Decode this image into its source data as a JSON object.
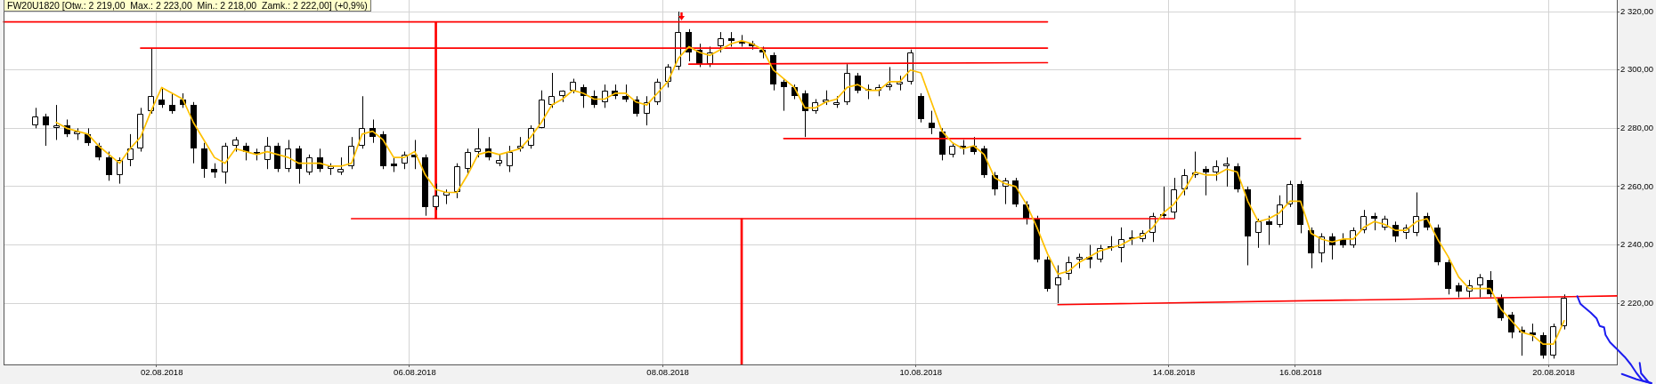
{
  "chart_data": {
    "type": "candlestick",
    "title": "FW20U1820 [Otw.: 2 219,00  Max.: 2 223,00  Min.: 2 218,00  Zamk.: 2 222,00] (+0,9%)",
    "categories": [
      null,
      null,
      null,
      null,
      null,
      null,
      null,
      null,
      null,
      null,
      null,
      null,
      null,
      null,
      null,
      "02.08.2018",
      null,
      null,
      null,
      null,
      null,
      null,
      null,
      null,
      null,
      null,
      null,
      null,
      null,
      null,
      null,
      null,
      null,
      null,
      null,
      null,
      null,
      null,
      null,
      "06.08.2018",
      null,
      null,
      null,
      null,
      null,
      null,
      null,
      null,
      null,
      null,
      null,
      null,
      null,
      null,
      null,
      null,
      null,
      null,
      null,
      null,
      null,
      null,
      null,
      "08.08.2018",
      null,
      null,
      null,
      null,
      null,
      null,
      null,
      null,
      null,
      null,
      null,
      null,
      null,
      null,
      null,
      null,
      null,
      null,
      null,
      null,
      null,
      null,
      null,
      "10.08.2018",
      null,
      null,
      null,
      null,
      null,
      null,
      null,
      null,
      null,
      null,
      null,
      null,
      null,
      null,
      null,
      null,
      null,
      null,
      null,
      null,
      null,
      null,
      null,
      "14.08.2018",
      null,
      null,
      null,
      null,
      null,
      null,
      null,
      null,
      null,
      null,
      null,
      "16.08.2018",
      null,
      null,
      null,
      null,
      null,
      null,
      null,
      null,
      null,
      null,
      null,
      null,
      null,
      null,
      null,
      null,
      null,
      null,
      null,
      null,
      null,
      null,
      null,
      "20.08.2018",
      null,
      null,
      null,
      null,
      null,
      null
    ],
    "ohlc": [
      null,
      null,
      null,
      [
        2281,
        2287,
        2280,
        2284
      ],
      [
        2284,
        2285,
        2274,
        2281
      ],
      [
        2280,
        2288,
        2276,
        2281
      ],
      [
        2281,
        2283,
        2277,
        2278
      ],
      [
        2278,
        2280,
        2276,
        2279
      ],
      [
        2278,
        2280,
        2274,
        2275
      ],
      [
        2274,
        2275,
        2269,
        2270
      ],
      [
        2270,
        2272,
        2262,
        2264
      ],
      [
        2264,
        2270,
        2261,
        2269
      ],
      [
        2269,
        2278,
        2267,
        2273
      ],
      [
        2273,
        2287,
        2272,
        2285
      ],
      [
        2286,
        2307.5,
        2285,
        2291
      ],
      [
        2290,
        2294,
        2287,
        2288
      ],
      [
        2288,
        2292,
        2285,
        2286
      ],
      [
        2290,
        2292,
        2287,
        2288
      ],
      [
        2288,
        2289,
        2268,
        2273
      ],
      [
        2273,
        2275,
        2263,
        2266
      ],
      [
        2266,
        2268,
        2263,
        2265
      ],
      [
        2265,
        2275,
        2261,
        2274
      ],
      [
        2274,
        2277,
        2272,
        2276
      ],
      [
        2274,
        2275,
        2269,
        2272
      ],
      [
        2272,
        2273,
        2269,
        2271
      ],
      [
        2269,
        2277,
        2266,
        2274
      ],
      [
        2274,
        2275,
        2265,
        2266
      ],
      [
        2266,
        2276,
        2265,
        2273
      ],
      [
        2273,
        2274,
        2261,
        2266
      ],
      [
        2265,
        2271,
        2264,
        2270
      ],
      [
        2270,
        2273,
        2265,
        2266
      ],
      [
        2266,
        2268,
        2264,
        2267
      ],
      [
        2265,
        2270,
        2264,
        2266
      ],
      [
        2267,
        2277,
        2266,
        2274
      ],
      [
        2274,
        2291,
        2273,
        2280
      ],
      [
        2280,
        2283,
        2275,
        2277
      ],
      [
        2278,
        2279,
        2266,
        2267
      ],
      [
        2268,
        2270,
        2265,
        2267
      ],
      [
        2268,
        2272,
        2266,
        2271
      ],
      [
        2271,
        2276,
        2266,
        2270
      ],
      [
        2270,
        2271,
        2250,
        2253
      ],
      [
        2253,
        2261,
        2252,
        2257
      ],
      [
        2257,
        2259,
        2254,
        2258
      ],
      [
        2258,
        2268,
        2256,
        2267
      ],
      [
        2266,
        2273,
        2264,
        2272
      ],
      [
        2272,
        2280,
        2270,
        2273
      ],
      [
        2273,
        2277,
        2269,
        2270
      ],
      [
        2268,
        2271,
        2267,
        2269
      ],
      [
        2267,
        2274,
        2265,
        2272
      ],
      [
        2273,
        2277,
        2272,
        2274
      ],
      [
        2274,
        2281,
        2273,
        2280
      ],
      [
        2280,
        2293,
        2280,
        2290
      ],
      [
        2288,
        2299,
        2287,
        2291
      ],
      [
        2291,
        2293,
        2289,
        2293
      ],
      [
        2293,
        2297,
        2292,
        2296
      ],
      [
        2294,
        2295,
        2287,
        2291
      ],
      [
        2291,
        2293,
        2287,
        2288
      ],
      [
        2289,
        2295,
        2287,
        2293
      ],
      [
        2293,
        2295,
        2290,
        2291
      ],
      [
        2291,
        2295,
        2289,
        2290
      ],
      [
        2290,
        2291,
        2284,
        2285
      ],
      [
        2285,
        2291,
        2281,
        2289
      ],
      [
        2289,
        2297,
        2288,
        2296
      ],
      [
        2296,
        2302,
        2294,
        2301
      ],
      [
        2301,
        2320,
        2300,
        2313
      ],
      [
        2313,
        2314,
        2303,
        2306
      ],
      [
        2307,
        2309,
        2301,
        2302
      ],
      [
        2302,
        2308,
        2301,
        2306
      ],
      [
        2308,
        2313,
        2306,
        2311
      ],
      [
        2311,
        2313,
        2308,
        2310
      ],
      [
        2310,
        2312,
        2308,
        2309
      ],
      [
        2309,
        2310,
        2307,
        2308
      ],
      [
        2307,
        2308,
        2304,
        2306
      ],
      [
        2305,
        2306,
        2293,
        2295
      ],
      [
        2296,
        2297,
        2286,
        2294
      ],
      [
        2294,
        2295,
        2290,
        2291
      ],
      [
        2292,
        2293,
        2277,
        2286
      ],
      [
        2286,
        2290,
        2285,
        2289
      ],
      [
        2289,
        2293,
        2288,
        2290
      ],
      [
        2288,
        2291,
        2287,
        2289
      ],
      [
        2289,
        2302,
        2288,
        2299
      ],
      [
        2298,
        2299,
        2292,
        2293
      ],
      [
        2293,
        2295,
        2290,
        2293.5
      ],
      [
        2293,
        2295,
        2291,
        2294
      ],
      [
        2294,
        2301,
        2293,
        2295
      ],
      [
        2295,
        2298,
        2293,
        2296
      ],
      [
        2296,
        2307,
        2295,
        2306
      ],
      [
        2291,
        2292,
        2282,
        2283
      ],
      [
        2282,
        2286,
        2278,
        2280
      ],
      [
        2279,
        2280,
        2269,
        2271
      ],
      [
        2271,
        2275,
        2270,
        2274
      ],
      [
        2274,
        2276,
        2271,
        2273
      ],
      [
        2274,
        2277,
        2271,
        2272
      ],
      [
        2273,
        2274,
        2263,
        2264
      ],
      [
        2264,
        2265,
        2257,
        2259
      ],
      [
        2260,
        2263,
        2254,
        2262
      ],
      [
        2262,
        2263,
        2253,
        2254
      ],
      [
        2254,
        2255,
        2247,
        2249
      ],
      [
        2249,
        2250,
        2234,
        2235
      ],
      [
        2235,
        2236,
        2224,
        2225
      ],
      [
        2226,
        2233,
        2220,
        2229
      ],
      [
        2230,
        2236,
        2228,
        2234
      ],
      [
        2235,
        2237,
        2232,
        2236
      ],
      [
        2236,
        2240,
        2232,
        2235
      ],
      [
        2235,
        2240,
        2234,
        2239
      ],
      [
        2239.5,
        2243,
        2238,
        2239
      ],
      [
        2239,
        2246,
        2234,
        2242
      ],
      [
        2242,
        2245,
        2240,
        2242.5
      ],
      [
        2242,
        2245,
        2241,
        2244
      ],
      [
        2244,
        2251,
        2241,
        2250
      ],
      [
        2250.5,
        2260,
        2249,
        2250
      ],
      [
        2251,
        2263,
        2249,
        2259
      ],
      [
        2259,
        2266,
        2257,
        2264
      ],
      [
        2264,
        2272,
        2263,
        2265
      ],
      [
        2266,
        2267,
        2257,
        2265
      ],
      [
        2265,
        2269,
        2262,
        2267
      ],
      [
        2267,
        2270,
        2260,
        2268
      ],
      [
        2267,
        2268,
        2258,
        2259
      ],
      [
        2259,
        2260,
        2233,
        2243
      ],
      [
        2244,
        2249,
        2239,
        2248
      ],
      [
        2248,
        2250,
        2240,
        2247
      ],
      [
        2247,
        2257,
        2246,
        2254
      ],
      [
        2254,
        2262,
        2253,
        2261
      ],
      [
        2261,
        2262,
        2244,
        2247
      ],
      [
        2245,
        2246,
        2232,
        2237
      ],
      [
        2237,
        2244,
        2234,
        2243
      ],
      [
        2243,
        2244,
        2235,
        2240
      ],
      [
        2242,
        2244,
        2239,
        2240
      ],
      [
        2240,
        2246,
        2239,
        2245
      ],
      [
        2245,
        2252,
        2244,
        2250
      ],
      [
        2250,
        2251,
        2245,
        2249
      ],
      [
        2246,
        2250,
        2245,
        2249
      ],
      [
        2247,
        2248,
        2241,
        2243
      ],
      [
        2244,
        2247,
        2242,
        2246
      ],
      [
        2244,
        2258,
        2243,
        2250
      ],
      [
        2250,
        2251,
        2245,
        2246
      ],
      [
        2246,
        2247,
        2233,
        2234
      ],
      [
        2234,
        2235,
        2223,
        2225
      ],
      [
        2226,
        2227,
        2222,
        2224
      ],
      [
        2224,
        2228,
        2222,
        2226
      ],
      [
        2226,
        2230,
        2222,
        2229
      ],
      [
        2228,
        2231,
        2222,
        2223
      ],
      [
        2222,
        2223,
        2214,
        2215
      ],
      [
        2216,
        2217,
        2208,
        2210
      ],
      [
        2211,
        2212,
        2202,
        2210
      ],
      [
        2210,
        2213,
        2207,
        2209
      ],
      [
        2209,
        2210,
        2201,
        2202
      ],
      [
        2202,
        2213,
        2201,
        2212
      ],
      [
        2212,
        2223,
        2211,
        2222
      ],
      null,
      null,
      null,
      null,
      null
    ],
    "series": [
      {
        "type": "line",
        "color": "#ffc000",
        "values": [
          null,
          null,
          null,
          null,
          null,
          2282,
          2280,
          2279,
          2278,
          2274,
          2271,
          2268,
          2273,
          2277,
          2286,
          2294,
          2292,
          2290,
          2282,
          2276,
          2270,
          2268,
          2273,
          2272,
          2271,
          2272,
          2271,
          2270,
          2268,
          2268,
          2268,
          2267,
          2267,
          2268,
          2278,
          2279,
          2276,
          2270,
          2270,
          2272,
          2264,
          2259,
          2258,
          2258,
          2264,
          2271,
          2272,
          2271,
          2272,
          2273,
          2277,
          2282,
          2288,
          2290,
          2293,
          2292,
          2290,
          2290,
          2292,
          2292,
          2289,
          2288,
          2292,
          2296,
          2304,
          2308,
          2306,
          2305,
          2307,
          2309,
          2310,
          2309,
          2307,
          2300,
          2297,
          2294,
          2287,
          2287,
          2289,
          2290,
          2294,
          2295,
          2293,
          2293,
          2296,
          2296,
          2300,
          2299,
          2289,
          2279,
          2275,
          2273,
          2274,
          2271,
          2263,
          2261,
          2260,
          2254,
          2246,
          2237,
          2230,
          2231,
          2234,
          2236,
          2238,
          2239,
          2240,
          2242,
          2243,
          2246,
          2251,
          2254,
          2259,
          2265,
          2264,
          2264,
          2266,
          2265,
          2255,
          2248,
          2249,
          2251,
          2255,
          2255,
          2244,
          2242,
          2241,
          2242,
          2242,
          2246,
          2248,
          2247,
          2245,
          2245,
          2248,
          2249,
          2242,
          2236,
          2229,
          2225,
          2225,
          2225,
          2218,
          2214,
          2210,
          2209,
          2206,
          2206,
          2214,
          null,
          null,
          null,
          null,
          null
        ]
      },
      {
        "type": "line",
        "color": "#ff0000",
        "values": [
          2316.5,
          null,
          null,
          null,
          null,
          null,
          null,
          null,
          null,
          null,
          null,
          null,
          null,
          null,
          null,
          null,
          null,
          null,
          null,
          null,
          null,
          null,
          null,
          null,
          null,
          null,
          null,
          null,
          null,
          null,
          null,
          null,
          null,
          null,
          null,
          null,
          null,
          null,
          null,
          null,
          null,
          null,
          null,
          null,
          null,
          null,
          null,
          null,
          null,
          null,
          null,
          null,
          null,
          null,
          null,
          null,
          null,
          null,
          null,
          null,
          null,
          null,
          null,
          null,
          null,
          null,
          null,
          null,
          null,
          null,
          null,
          null,
          null,
          null,
          null,
          null,
          null,
          null,
          null,
          null,
          null,
          null,
          null,
          null,
          null,
          null,
          null,
          null,
          null,
          null,
          null,
          null,
          null,
          null,
          null,
          null,
          null,
          null,
          null,
          2316.5,
          null,
          null,
          null,
          null,
          null,
          null,
          null,
          null,
          null,
          null,
          null,
          null,
          null,
          null,
          null,
          null,
          null,
          null,
          null,
          null,
          null,
          null,
          null,
          null,
          null,
          null,
          null,
          null,
          null,
          null,
          null,
          null,
          null,
          null,
          null,
          null,
          null,
          null,
          null,
          null,
          null,
          null,
          null,
          null,
          null,
          null,
          null,
          null,
          null,
          null,
          null,
          null,
          null,
          null
        ]
      },
      {
        "type": "line",
        "color": "#ff0000",
        "values": [
          null,
          null,
          null,
          null,
          null,
          null,
          null,
          null,
          null,
          null,
          null,
          null,
          null,
          2307.5,
          null,
          null,
          null,
          null,
          null,
          null,
          null,
          null,
          null,
          null,
          null,
          null,
          null,
          null,
          null,
          null,
          null,
          null,
          null,
          null,
          null,
          null,
          null,
          null,
          null,
          null,
          null,
          null,
          null,
          null,
          null,
          null,
          null,
          null,
          null,
          null,
          null,
          null,
          null,
          null,
          null,
          null,
          null,
          null,
          null,
          null,
          null,
          null,
          null,
          null,
          null,
          null,
          null,
          null,
          null,
          null,
          null,
          null,
          null,
          null,
          null,
          null,
          null,
          null,
          null,
          null,
          null,
          null,
          null,
          null,
          null,
          null,
          null,
          null,
          null,
          null,
          null,
          null,
          null,
          null,
          null,
          null,
          null,
          null,
          null,
          2307.5,
          null,
          null,
          null,
          null,
          null,
          null,
          null,
          null,
          null,
          null,
          null,
          null,
          null,
          null,
          null,
          null,
          null,
          null,
          null,
          null,
          null,
          null,
          null,
          null,
          null,
          null,
          null,
          null,
          null,
          null,
          null,
          null,
          null,
          null,
          null,
          null,
          null,
          null,
          null,
          null,
          null,
          null,
          null,
          null,
          null,
          null,
          null,
          null,
          null,
          null,
          null,
          null,
          null,
          null
        ]
      },
      {
        "type": "line",
        "color": "#ff0000",
        "values": [
          null,
          null,
          null,
          null,
          null,
          null,
          null,
          null,
          null,
          null,
          null,
          null,
          null,
          null,
          null,
          null,
          null,
          null,
          null,
          null,
          null,
          null,
          null,
          null,
          null,
          null,
          null,
          null,
          null,
          null,
          null,
          null,
          null,
          null,
          null,
          null,
          null,
          null,
          null,
          null,
          null,
          null,
          null,
          null,
          null,
          null,
          null,
          null,
          null,
          null,
          null,
          null,
          null,
          null,
          null,
          null,
          null,
          null,
          null,
          null,
          null,
          null,
          null,
          null,
          null,
          2302,
          null,
          null,
          null,
          null,
          null,
          null,
          null,
          null,
          null,
          null,
          null,
          null,
          null,
          null,
          null,
          null,
          null,
          null,
          null,
          null,
          null,
          null,
          null,
          null,
          null,
          null,
          null,
          null,
          null,
          null,
          null,
          null,
          null,
          2302.5,
          null,
          null,
          null,
          null,
          null,
          null,
          null,
          null,
          null,
          null,
          null,
          null,
          null,
          null,
          null,
          null,
          null,
          null,
          null,
          null,
          null,
          null,
          null,
          null,
          null,
          null,
          null,
          null,
          null,
          null,
          null,
          null,
          null,
          null,
          null,
          null,
          null,
          null,
          null,
          null,
          null,
          null,
          null,
          null,
          null,
          null,
          null,
          null,
          null,
          null,
          null,
          null,
          null,
          null
        ]
      },
      {
        "type": "line",
        "color": "#ff0000",
        "values": [
          null,
          null,
          null,
          null,
          null,
          null,
          null,
          null,
          null,
          null,
          null,
          null,
          null,
          null,
          null,
          null,
          null,
          null,
          null,
          null,
          null,
          null,
          null,
          null,
          null,
          null,
          null,
          null,
          null,
          null,
          null,
          null,
          null,
          null,
          null,
          null,
          null,
          null,
          null,
          null,
          null,
          null,
          null,
          null,
          null,
          null,
          null,
          null,
          null,
          null,
          null,
          null,
          null,
          null,
          null,
          null,
          null,
          null,
          null,
          null,
          null,
          null,
          null,
          null,
          null,
          null,
          null,
          null,
          null,
          null,
          null,
          null,
          null,
          null,
          2276.5,
          null,
          null,
          null,
          null,
          null,
          null,
          null,
          null,
          null,
          null,
          null,
          null,
          null,
          null,
          null,
          null,
          null,
          null,
          null,
          null,
          null,
          null,
          null,
          null,
          null,
          null,
          null,
          null,
          null,
          null,
          null,
          null,
          null,
          null,
          null,
          null,
          null,
          null,
          null,
          null,
          null,
          null,
          null,
          null,
          null,
          null,
          null,
          null,
          2276.5,
          null,
          null,
          null,
          null,
          null,
          null,
          null,
          null,
          null,
          null,
          null,
          null,
          null,
          null,
          null,
          null,
          null,
          null,
          null,
          null,
          null,
          null,
          null,
          null,
          null,
          null,
          null,
          null,
          null,
          null
        ]
      },
      {
        "type": "line",
        "color": "#ff0000",
        "values": [
          null,
          null,
          null,
          null,
          null,
          null,
          null,
          null,
          null,
          null,
          null,
          null,
          null,
          null,
          null,
          null,
          null,
          null,
          null,
          null,
          null,
          null,
          null,
          null,
          null,
          null,
          null,
          null,
          null,
          null,
          null,
          null,
          null,
          2249,
          null,
          null,
          null,
          null,
          null,
          null,
          null,
          null,
          null,
          null,
          null,
          null,
          null,
          null,
          null,
          null,
          null,
          null,
          null,
          null,
          null,
          null,
          null,
          null,
          null,
          null,
          null,
          null,
          null,
          null,
          null,
          null,
          null,
          null,
          null,
          null,
          null,
          null,
          null,
          null,
          null,
          null,
          null,
          null,
          null,
          null,
          null,
          null,
          null,
          null,
          null,
          null,
          null,
          null,
          null,
          null,
          null,
          null,
          null,
          null,
          null,
          null,
          null,
          null,
          null,
          null,
          null,
          null,
          null,
          null,
          null,
          null,
          null,
          null,
          null,
          null,
          null,
          2249,
          null,
          null,
          null,
          null,
          null,
          null,
          null,
          null,
          null,
          null,
          null,
          null,
          null,
          null,
          null,
          null,
          null,
          null,
          null,
          null,
          null,
          null,
          null,
          null,
          null,
          null,
          null,
          null,
          null,
          null,
          null,
          null,
          null,
          null,
          null,
          null,
          null,
          null,
          null,
          null,
          null,
          null
        ]
      },
      {
        "type": "line",
        "color": "#ff0000",
        "values": [
          null,
          null,
          null,
          null,
          null,
          null,
          null,
          null,
          null,
          null,
          null,
          null,
          null,
          null,
          null,
          null,
          null,
          null,
          null,
          null,
          null,
          null,
          null,
          null,
          null,
          null,
          null,
          null,
          null,
          null,
          null,
          null,
          null,
          null,
          null,
          null,
          null,
          null,
          null,
          null,
          null,
          null,
          null,
          null,
          null,
          null,
          null,
          null,
          null,
          null,
          null,
          null,
          null,
          null,
          null,
          null,
          null,
          null,
          null,
          null,
          null,
          null,
          null,
          null,
          null,
          null,
          null,
          null,
          null,
          null,
          null,
          null,
          null,
          null,
          null,
          null,
          null,
          null,
          null,
          null,
          null,
          null,
          null,
          null,
          null,
          null,
          null,
          null,
          null,
          null,
          null,
          null,
          null,
          null,
          null,
          null,
          null,
          null,
          null,
          null,
          2219.5,
          null,
          null,
          null,
          null,
          null,
          null,
          null,
          null,
          null,
          null,
          null,
          null,
          null,
          null,
          null,
          null,
          null,
          null,
          null,
          null,
          null,
          null,
          null,
          null,
          null,
          null,
          null,
          null,
          null,
          null,
          null,
          null,
          null,
          null,
          null,
          null,
          null,
          null,
          null,
          null,
          null,
          null,
          null,
          null,
          null,
          null,
          null,
          null,
          null,
          null,
          null,
          null,
          2222.5
        ]
      },
      {
        "type": "bar",
        "color": "#ff0000",
        "base": [
          null,
          null,
          null,
          null,
          null,
          null,
          null,
          null,
          null,
          null,
          null,
          null,
          null,
          null,
          null,
          null,
          null,
          null,
          null,
          null,
          null,
          null,
          null,
          null,
          null,
          null,
          null,
          null,
          null,
          null,
          null,
          null,
          null,
          null,
          null,
          null,
          null,
          null,
          null,
          null,
          null,
          2249,
          null,
          null,
          null,
          null,
          null,
          null,
          null,
          null,
          null,
          null,
          null,
          null,
          null,
          null,
          null,
          null,
          null,
          null,
          null,
          null,
          null,
          null,
          null,
          null,
          null,
          null,
          null,
          null,
          2199,
          null,
          null,
          null,
          null,
          null,
          null,
          null,
          null,
          null,
          null,
          null,
          null,
          null,
          null,
          null,
          null,
          null,
          null,
          null,
          null,
          null,
          null,
          null,
          null,
          null,
          null,
          null,
          null,
          null,
          null,
          null,
          null,
          null,
          null,
          null,
          null,
          null,
          null,
          null,
          null,
          null,
          null,
          null,
          null,
          null,
          null,
          null,
          null,
          null,
          null,
          null,
          null,
          null,
          null,
          null,
          null,
          null,
          null,
          null,
          null,
          null,
          null,
          null,
          null,
          null,
          null,
          null,
          null,
          null,
          null,
          null,
          null,
          null,
          null,
          null,
          null,
          null,
          null,
          null,
          null,
          null,
          null,
          null
        ],
        "values": [
          null,
          null,
          null,
          null,
          null,
          null,
          null,
          null,
          null,
          null,
          null,
          null,
          null,
          null,
          null,
          null,
          null,
          null,
          null,
          null,
          null,
          null,
          null,
          null,
          null,
          null,
          null,
          null,
          null,
          null,
          null,
          null,
          null,
          null,
          null,
          null,
          null,
          null,
          null,
          null,
          null,
          67.5,
          null,
          null,
          null,
          null,
          null,
          null,
          null,
          null,
          null,
          null,
          null,
          null,
          null,
          null,
          null,
          null,
          null,
          null,
          null,
          null,
          null,
          null,
          null,
          null,
          null,
          null,
          null,
          null,
          50,
          null,
          null,
          null,
          null,
          null,
          null,
          null,
          null,
          null,
          null,
          null,
          null,
          null,
          null,
          null,
          null,
          null,
          null,
          null,
          null,
          null,
          null,
          null,
          null,
          null,
          null,
          null,
          null,
          null,
          null,
          null,
          null,
          null,
          null,
          null,
          null,
          null,
          null,
          null,
          null,
          null,
          null,
          null,
          null,
          null,
          null,
          null,
          null,
          null,
          null,
          null,
          null,
          null,
          null,
          null,
          null,
          null,
          null,
          null,
          null,
          null,
          null,
          null,
          null,
          null,
          null,
          null,
          null,
          null,
          null,
          null,
          null,
          null,
          null,
          null,
          null,
          null,
          null,
          null,
          null,
          null,
          null,
          null
        ]
      }
    ],
    "ylim": [
      2199,
      2324
    ],
    "yticks": [
      {
        "value": 2220,
        "label": "2 220,00"
      },
      {
        "value": 2240,
        "label": "2 240,00"
      },
      {
        "value": 2260,
        "label": "2 260,00"
      },
      {
        "value": 2280,
        "label": "2 280,00"
      },
      {
        "value": 2300,
        "label": "2 300,00"
      },
      {
        "value": 2320,
        "label": "2 320,00"
      }
    ],
    "grid": true
  }
}
